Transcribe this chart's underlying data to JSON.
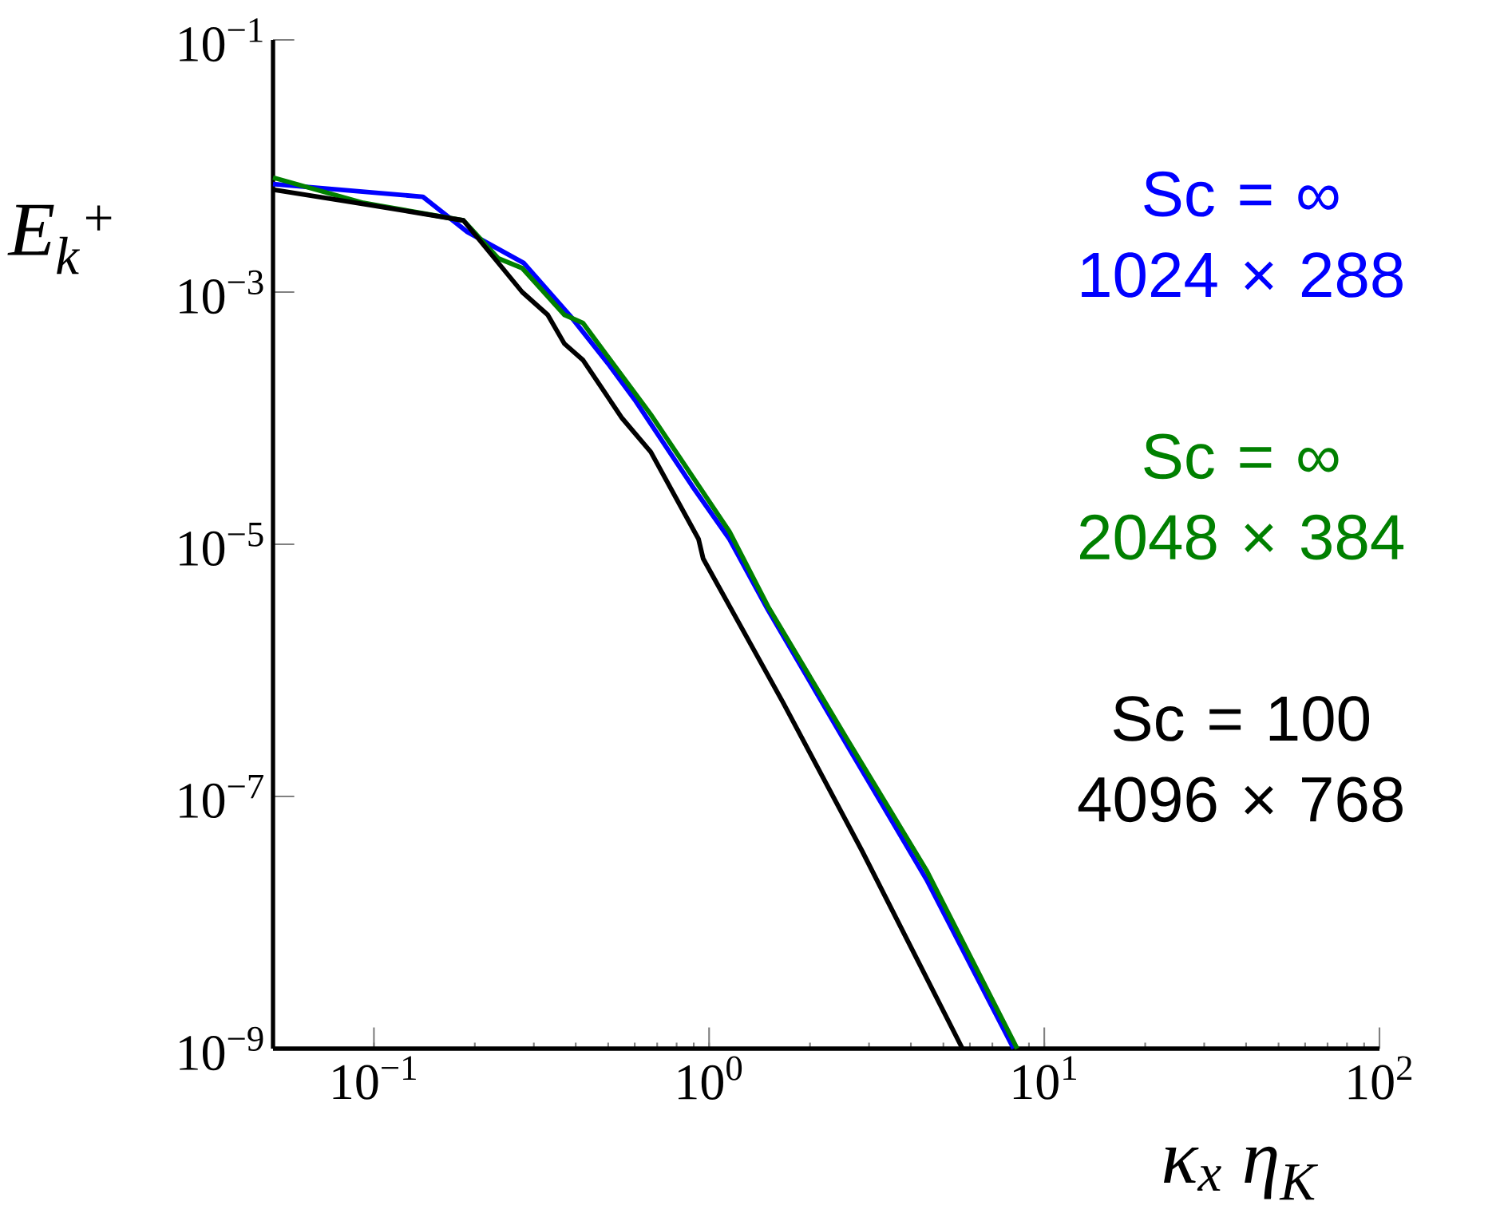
{
  "chart_data": {
    "type": "line",
    "xlabel": "κ$_{x}$ η$_{K}$",
    "ylabel": "E$_{k}$$^{+}$",
    "log": "xy",
    "xlim": [
      0.05,
      100
    ],
    "ylim": [
      1e-09,
      0.1
    ],
    "xticks": [
      {
        "value": 0.1,
        "label": "10$^{−1}$"
      },
      {
        "value": 1,
        "label": "10$^{0}$"
      },
      {
        "value": 10,
        "label": "10$^{1}$"
      },
      {
        "value": 100,
        "label": "10$^{2}$"
      }
    ],
    "yticks": [
      {
        "value": 1e-09,
        "label": "10$^{−9}$"
      },
      {
        "value": 1e-07,
        "label": "10$^{−7}$"
      },
      {
        "value": 1e-05,
        "label": "10$^{−5}$"
      },
      {
        "value": 0.001,
        "label": "10$^{−3}$"
      },
      {
        "value": 0.1,
        "label": "10$^{−1}$"
      }
    ],
    "legend": "right",
    "grid": false,
    "marker": "none",
    "line_style": "solid",
    "series": [
      {
        "name": "Sc = ∞ 1024 × 288",
        "color": "#0000ff",
        "x": [
          0.05,
          0.14,
          0.19,
          0.28,
          0.385,
          0.5,
          0.6,
          0.89,
          1.15,
          1.5,
          2.57,
          4.45,
          8.1
        ],
        "values": [
          0.0072,
          0.0057,
          0.003,
          0.0017,
          0.00065,
          0.00027,
          0.00014,
          2.9e-05,
          1.1e-05,
          3e-06,
          2.6e-07,
          2.2e-08,
          1e-09
        ]
      },
      {
        "name": "Sc = ∞ 2048 × 384",
        "color": "#008000",
        "x": [
          0.05,
          0.093,
          0.185,
          0.235,
          0.277,
          0.37,
          0.42,
          0.67,
          1.15,
          1.5,
          2.57,
          4.45,
          8.3
        ],
        "values": [
          0.0081,
          0.0051,
          0.0037,
          0.00185,
          0.00155,
          0.00066,
          0.00057,
          0.000107,
          1.26e-05,
          3.2e-06,
          2.9e-07,
          2.6e-08,
          1e-09
        ]
      },
      {
        "name": "Sc = 100 4096 × 768",
        "color": "#000000",
        "x": [
          0.05,
          0.093,
          0.185,
          0.277,
          0.33,
          0.37,
          0.42,
          0.55,
          0.67,
          0.93,
          0.96,
          1.66,
          2.86,
          5.7
        ],
        "values": [
          0.0065,
          0.005,
          0.0037,
          0.001,
          0.00066,
          0.00039,
          0.00029,
          0.0001,
          5.4e-05,
          1.1e-05,
          7.7e-06,
          5.6e-07,
          3.7e-08,
          1e-09
        ]
      }
    ]
  }
}
